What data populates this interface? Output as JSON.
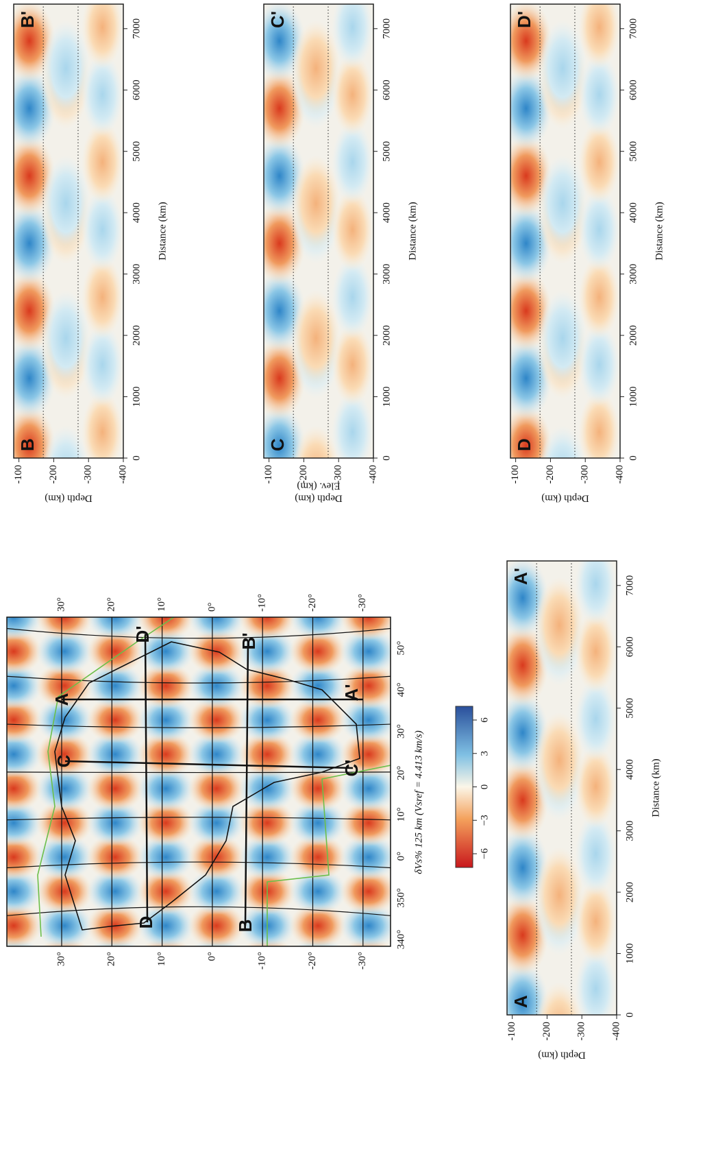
{
  "map": {
    "profile_labels": [
      "A",
      "A'",
      "B",
      "B'",
      "C",
      "C'",
      "D",
      "D'"
    ],
    "lat_ticks": [
      "30°",
      "20°",
      "10°",
      "0°",
      "-10°",
      "-20°",
      "-30°"
    ],
    "lon_ticks": [
      "340°",
      "350°",
      "0°",
      "10°",
      "20°",
      "30°",
      "40°",
      "50°"
    ],
    "colorbar": {
      "ticks": [
        "−6",
        "−3",
        "0",
        "3",
        "6"
      ],
      "label": "δVs% 125 km (Vsref =  4.413   km/s)"
    }
  },
  "sections": [
    {
      "start": "A",
      "end": "A'",
      "depth_ticks": [
        "-100",
        "-200",
        "-300",
        "-400"
      ],
      "depth_label": "Depth (km)",
      "distance_ticks": [
        "0",
        "1000",
        "2000",
        "3000",
        "4000",
        "5000",
        "6000",
        "7000"
      ],
      "distance_label": "Distance (km)"
    },
    {
      "start": "B",
      "end": "B'",
      "depth_ticks": [
        "-100",
        "-200",
        "-300",
        "-400"
      ],
      "depth_label": "Depth (km)",
      "distance_ticks": [
        "0",
        "1000",
        "2000",
        "3000",
        "4000",
        "5000",
        "6000",
        "7000"
      ],
      "distance_label": "Distance (km)"
    },
    {
      "start": "C",
      "end": "C'",
      "depth_ticks": [
        "-100",
        "-200",
        "-300",
        "-400"
      ],
      "depth_label": "Depth (km)",
      "elev_label": "Elev. (km)",
      "distance_ticks": [
        "0",
        "1000",
        "2000",
        "3000",
        "4000",
        "5000",
        "6000",
        "7000"
      ],
      "distance_label": "Distance (km)"
    },
    {
      "start": "D",
      "end": "D'",
      "depth_ticks": [
        "-100",
        "-200",
        "-300",
        "-400"
      ],
      "depth_label": "Depth (km)",
      "distance_ticks": [
        "0",
        "1000",
        "2000",
        "3000",
        "4000",
        "5000",
        "6000",
        "7000"
      ],
      "distance_label": "Distance (km)"
    }
  ]
}
